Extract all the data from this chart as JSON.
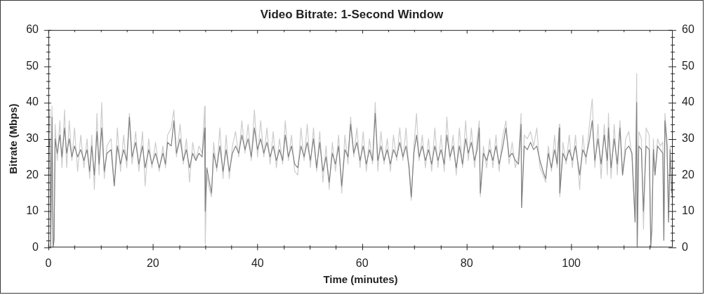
{
  "chart_data": {
    "type": "line",
    "title": "Video Bitrate: 1-Second Window",
    "xlabel": "Time (minutes)",
    "ylabel": "Bitrate (Mbps)",
    "x": [
      0,
      0.3,
      0.45,
      0.7,
      0.9,
      1.1,
      1.3,
      1.7,
      2.2,
      2.6,
      3.1,
      3.5,
      4,
      4.5,
      5,
      5.6,
      6.2,
      6.8,
      7.4,
      7.9,
      8.3,
      8.8,
      9.3,
      9.7,
      10.2,
      10.7,
      11.2,
      12,
      12.6,
      13.2,
      13.8,
      14.4,
      15,
      15.5,
      16,
      16.7,
      17.3,
      18,
      18.5,
      19.2,
      19.8,
      20.5,
      21.2,
      21.9,
      22.4,
      22.8,
      23.5,
      24,
      24.5,
      25.2,
      25.8,
      26.4,
      27,
      27.6,
      28.2,
      28.8,
      29.4,
      29.9,
      30,
      30.3,
      30.8,
      31.2,
      31.6,
      32.2,
      32.8,
      33.4,
      34,
      34.6,
      35.2,
      35.8,
      36.4,
      37,
      37.6,
      38.2,
      38.8,
      39.4,
      40,
      40.6,
      41.2,
      41.8,
      42.4,
      43,
      43.6,
      44.2,
      44.8,
      45.3,
      45.9,
      46.5,
      47.1,
      47.7,
      48.3,
      48.9,
      49.5,
      50.1,
      50.7,
      51.3,
      51.9,
      52.5,
      53.1,
      53.7,
      54.3,
      54.9,
      55.5,
      56.1,
      56.7,
      57.3,
      57.8,
      58.4,
      59,
      59.6,
      60.2,
      60.8,
      61.4,
      62,
      62.5,
      63,
      63.6,
      64.2,
      64.8,
      65.4,
      66,
      66.6,
      67.2,
      67.8,
      68.4,
      69,
      69.4,
      69.9,
      70.4,
      70.9,
      71.5,
      72.1,
      72.7,
      73.3,
      73.9,
      74.5,
      75.1,
      75.7,
      76.2,
      76.8,
      77.4,
      78,
      78.6,
      79.2,
      79.8,
      80.3,
      80.9,
      81.5,
      82,
      82.4,
      82.6,
      83.2,
      83.8,
      84.4,
      85,
      85.6,
      86.2,
      86.8,
      87.5,
      88.1,
      88.7,
      89.3,
      89.9,
      90.4,
      90.5,
      91,
      91.6,
      92.2,
      92.8,
      93.4,
      94,
      94.6,
      95.1,
      95.6,
      96.2,
      96.8,
      97.3,
      97.7,
      97.8,
      98.4,
      99,
      99.6,
      100.2,
      100.8,
      101.4,
      101.6,
      102.2,
      102.8,
      103.4,
      104,
      104.5,
      105.1,
      105.7,
      106.3,
      106.9,
      107.1,
      107.6,
      108.2,
      108.8,
      109.3,
      109.8,
      110.4,
      111,
      111.6,
      112.2,
      112.5,
      112.6,
      112.9,
      113.4,
      113.8,
      114.3,
      114.9,
      115.2,
      115.4,
      115.7,
      116,
      116.5,
      117,
      117.5,
      117.7,
      117.9,
      118.3,
      118.6,
      118.9,
      119.2
    ],
    "series": [
      {
        "color": "#cccccc",
        "values": [
          28,
          38,
          0,
          39,
          0,
          3,
          34,
          24,
          35,
          22,
          38,
          22,
          35,
          24,
          33,
          21,
          31,
          22,
          30,
          19,
          31,
          16,
          37,
          20,
          40,
          19,
          28,
          30,
          17,
          33,
          21,
          31,
          22,
          37,
          23,
          32,
          21,
          32,
          17,
          30,
          22,
          29,
          21,
          28,
          22,
          31,
          33,
          38,
          25,
          34,
          23,
          30,
          18,
          29,
          24,
          28,
          26,
          39,
          1,
          20,
          16,
          14,
          29,
          21,
          33,
          19,
          31,
          19,
          28,
          32,
          25,
          35,
          26,
          34,
          24,
          38,
          25,
          35,
          25,
          33,
          23,
          32,
          22,
          30,
          23,
          35,
          24,
          31,
          21,
          20,
          33,
          24,
          34,
          22,
          33,
          21,
          32,
          18,
          28,
          16,
          29,
          21,
          31,
          15,
          31,
          23,
          36,
          25,
          33,
          22,
          32,
          21,
          30,
          23,
          40,
          21,
          32,
          23,
          30,
          21,
          31,
          24,
          33,
          24,
          33,
          20,
          13,
          28,
          37,
          24,
          31,
          22,
          30,
          21,
          33,
          22,
          31,
          21,
          36,
          24,
          31,
          20,
          33,
          22,
          35,
          24,
          33,
          22,
          30,
          35,
          14,
          28,
          22,
          30,
          22,
          31,
          21,
          30,
          35,
          23,
          29,
          22,
          25,
          37,
          11,
          31,
          30,
          32,
          28,
          33,
          22,
          20,
          18,
          28,
          21,
          31,
          22,
          34,
          14,
          29,
          23,
          31,
          22,
          31,
          20,
          16,
          31,
          23,
          33,
          41,
          22,
          34,
          19,
          34,
          20,
          37,
          19,
          34,
          20,
          35,
          20,
          30,
          32,
          25,
          7,
          48,
          0,
          32,
          30,
          5,
          33,
          31,
          2,
          5,
          30,
          20,
          30,
          28,
          29,
          2,
          37,
          30,
          7,
          28,
          14
        ]
      },
      {
        "color": "#808080",
        "values": [
          27,
          30,
          0,
          36,
          0,
          2,
          30,
          26,
          31,
          25,
          33,
          26,
          30,
          25,
          28,
          25,
          27,
          24,
          27,
          21,
          28,
          20,
          32,
          23,
          33,
          21,
          26,
          27,
          17,
          28,
          23,
          27,
          24,
          36,
          25,
          29,
          23,
          28,
          22,
          27,
          23,
          26,
          22,
          26,
          23,
          29,
          28,
          35,
          26,
          30,
          24,
          27,
          22,
          26,
          24,
          26,
          25,
          33,
          10,
          22,
          18,
          15,
          26,
          22,
          28,
          21,
          27,
          21,
          26,
          28,
          26,
          31,
          27,
          30,
          25,
          33,
          27,
          30,
          26,
          29,
          25,
          28,
          24,
          27,
          24,
          31,
          25,
          28,
          23,
          22,
          28,
          25,
          29,
          24,
          30,
          22,
          29,
          21,
          25,
          18,
          26,
          23,
          28,
          17,
          27,
          25,
          34,
          26,
          29,
          24,
          28,
          23,
          27,
          24,
          37,
          24,
          28,
          24,
          27,
          23,
          27,
          25,
          29,
          25,
          28,
          22,
          14,
          26,
          31,
          25,
          28,
          24,
          27,
          23,
          28,
          24,
          27,
          23,
          31,
          25,
          28,
          22,
          28,
          23,
          30,
          26,
          29,
          24,
          27,
          33,
          15,
          26,
          24,
          27,
          24,
          28,
          23,
          27,
          33,
          25,
          26,
          24,
          23,
          34,
          11,
          28,
          27,
          29,
          27,
          28,
          24,
          21,
          19,
          26,
          22,
          27,
          23,
          33,
          15,
          26,
          24,
          27,
          24,
          28,
          22,
          20,
          27,
          25,
          29,
          35,
          24,
          30,
          23,
          31,
          24,
          33,
          22,
          30,
          23,
          33,
          20,
          27,
          28,
          26,
          7,
          40,
          0,
          28,
          27,
          10,
          28,
          27,
          0,
          5,
          27,
          20,
          28,
          27,
          26,
          2,
          35,
          28,
          7,
          27,
          15
        ]
      }
    ],
    "xlim": [
      0,
      119.4
    ],
    "xticks": [
      0,
      {
        "value": 5,
        "label": null
      },
      {
        "value": 10,
        "label": null
      },
      {
        "value": 15,
        "label": null
      },
      20,
      {
        "value": 25,
        "label": null
      },
      {
        "value": 30,
        "label": null
      },
      {
        "value": 35,
        "label": null
      },
      40,
      {
        "value": 45,
        "label": null
      },
      {
        "value": 50,
        "label": null
      },
      {
        "value": 55,
        "label": null
      },
      60,
      {
        "value": 65,
        "label": null
      },
      {
        "value": 70,
        "label": null
      },
      {
        "value": 75,
        "label": null
      },
      80,
      {
        "value": 85,
        "label": null
      },
      {
        "value": 90,
        "label": null
      },
      {
        "value": 95,
        "label": null
      },
      100,
      {
        "value": 105,
        "label": null
      },
      {
        "value": 110,
        "label": null
      },
      {
        "value": 115,
        "label": null
      }
    ],
    "ylim": [
      0,
      60
    ],
    "yticks": [
      0,
      {
        "value": 2,
        "label": null
      },
      {
        "value": 4,
        "label": null
      },
      {
        "value": 6,
        "label": null
      },
      {
        "value": 8,
        "label": null
      },
      10,
      {
        "value": 12,
        "label": null
      },
      {
        "value": 14,
        "label": null
      },
      {
        "value": 16,
        "label": null
      },
      {
        "value": 18,
        "label": null
      },
      20,
      {
        "value": 22,
        "label": null
      },
      {
        "value": 24,
        "label": null
      },
      {
        "value": 26,
        "label": null
      },
      {
        "value": 28,
        "label": null
      },
      30,
      {
        "value": 32,
        "label": null
      },
      {
        "value": 34,
        "label": null
      },
      {
        "value": 36,
        "label": null
      },
      {
        "value": 38,
        "label": null
      },
      40,
      {
        "value": 42,
        "label": null
      },
      {
        "value": 44,
        "label": null
      },
      {
        "value": 46,
        "label": null
      },
      {
        "value": 48,
        "label": null
      },
      50,
      {
        "value": 52,
        "label": null
      },
      {
        "value": 54,
        "label": null
      },
      {
        "value": 56,
        "label": null
      },
      {
        "value": 58,
        "label": null
      },
      60
    ],
    "y2lim": [
      0,
      60
    ],
    "y2ticks": [
      0,
      {
        "value": 2,
        "label": null
      },
      {
        "value": 4,
        "label": null
      },
      {
        "value": 6,
        "label": null
      },
      {
        "value": 8,
        "label": null
      },
      10,
      {
        "value": 12,
        "label": null
      },
      {
        "value": 14,
        "label": null
      },
      {
        "value": 16,
        "label": null
      },
      {
        "value": 18,
        "label": null
      },
      20,
      {
        "value": 22,
        "label": null
      },
      {
        "value": 24,
        "label": null
      },
      {
        "value": 26,
        "label": null
      },
      {
        "value": 28,
        "label": null
      },
      30,
      {
        "value": 32,
        "label": null
      },
      {
        "value": 34,
        "label": null
      },
      {
        "value": 36,
        "label": null
      },
      {
        "value": 38,
        "label": null
      },
      40,
      {
        "value": 42,
        "label": null
      },
      {
        "value": 44,
        "label": null
      },
      {
        "value": 46,
        "label": null
      },
      {
        "value": 48,
        "label": null
      },
      50,
      {
        "value": 52,
        "label": null
      },
      {
        "value": 54,
        "label": null
      },
      {
        "value": 56,
        "label": null
      },
      {
        "value": 58,
        "label": null
      },
      60
    ],
    "grid": false,
    "legend": false,
    "marker": "none"
  }
}
